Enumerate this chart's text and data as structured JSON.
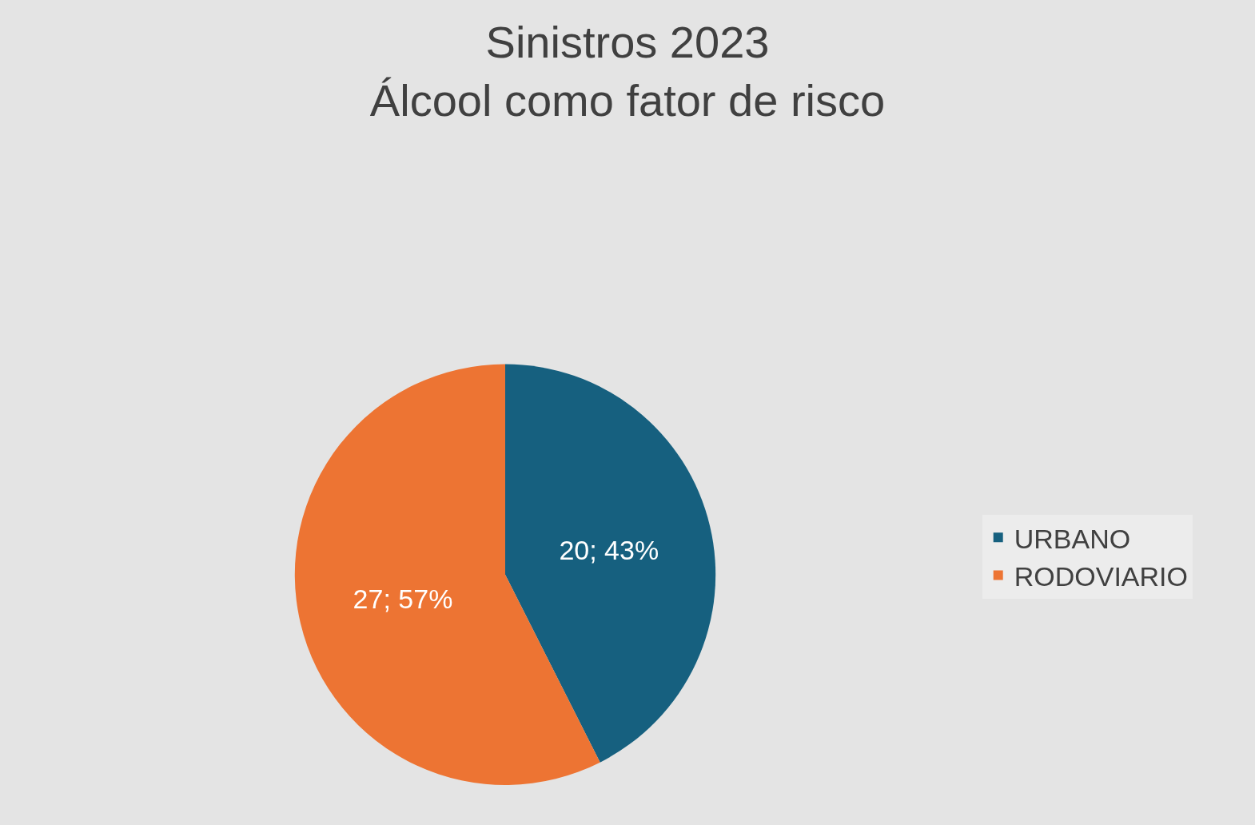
{
  "chart_data": {
    "type": "pie",
    "title": "Sinistros 2023\nÁlcool como fator de risco",
    "categories": [
      "URBANO",
      "RODOVIARIO"
    ],
    "values": [
      20,
      27
    ],
    "colors": [
      "#16607f",
      "#ed7433"
    ],
    "value_labels": [
      "20; 43%",
      "27; 57%"
    ],
    "legend": "right"
  }
}
